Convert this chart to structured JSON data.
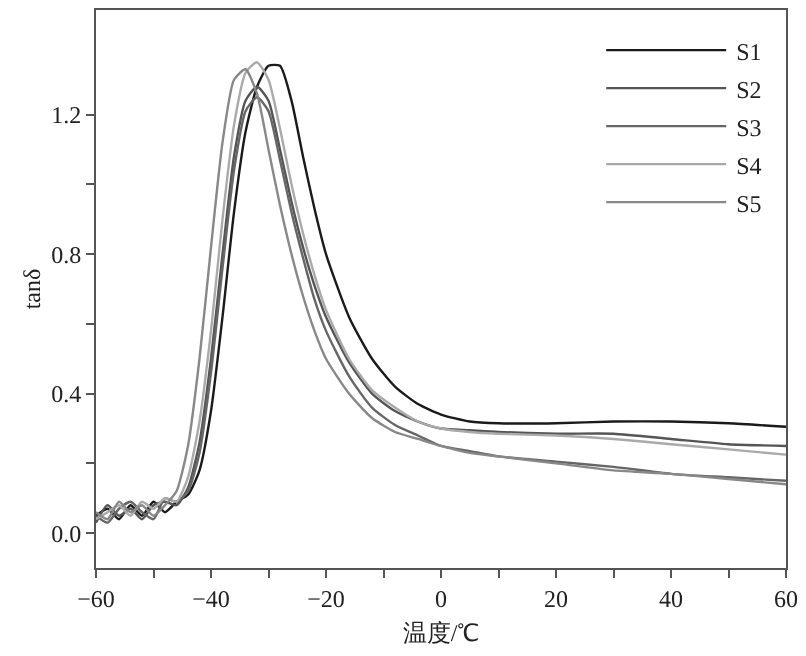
{
  "chart_data": {
    "type": "line",
    "xlabel": "温度/℃",
    "ylabel": "tanδ",
    "x": [
      -60,
      -58,
      -56,
      -54,
      -52,
      -50,
      -48,
      -46,
      -44,
      -42,
      -40,
      -38,
      -36,
      -34,
      -32,
      -30,
      -28,
      -26,
      -24,
      -22,
      -20,
      -16,
      -12,
      -8,
      -4,
      0,
      5,
      10,
      20,
      30,
      40,
      50,
      60
    ],
    "series": [
      {
        "name": "S1",
        "color": "#1a1a1a",
        "values": [
          0.05,
          0.07,
          0.04,
          0.08,
          0.05,
          0.09,
          0.06,
          0.09,
          0.11,
          0.18,
          0.35,
          0.62,
          0.92,
          1.15,
          1.28,
          1.34,
          1.34,
          1.24,
          1.08,
          0.93,
          0.8,
          0.62,
          0.5,
          0.42,
          0.37,
          0.34,
          0.32,
          0.315,
          0.315,
          0.32,
          0.32,
          0.315,
          0.305
        ]
      },
      {
        "name": "S2",
        "color": "#555555",
        "values": [
          0.03,
          0.08,
          0.05,
          0.07,
          0.04,
          0.08,
          0.09,
          0.08,
          0.13,
          0.26,
          0.5,
          0.8,
          1.08,
          1.24,
          1.28,
          1.24,
          1.1,
          0.95,
          0.82,
          0.71,
          0.62,
          0.49,
          0.4,
          0.35,
          0.32,
          0.3,
          0.295,
          0.29,
          0.285,
          0.285,
          0.27,
          0.255,
          0.25
        ]
      },
      {
        "name": "S3",
        "color": "#666666",
        "values": [
          0.05,
          0.03,
          0.07,
          0.09,
          0.06,
          0.04,
          0.1,
          0.09,
          0.12,
          0.23,
          0.46,
          0.76,
          1.04,
          1.21,
          1.25,
          1.21,
          1.07,
          0.92,
          0.79,
          0.67,
          0.58,
          0.45,
          0.36,
          0.31,
          0.28,
          0.25,
          0.235,
          0.22,
          0.205,
          0.19,
          0.17,
          0.16,
          0.15
        ]
      },
      {
        "name": "S4",
        "color": "#aaaaaa",
        "values": [
          0.04,
          0.06,
          0.08,
          0.05,
          0.09,
          0.07,
          0.1,
          0.09,
          0.16,
          0.32,
          0.58,
          0.9,
          1.17,
          1.32,
          1.35,
          1.3,
          1.16,
          1.0,
          0.86,
          0.74,
          0.64,
          0.5,
          0.41,
          0.36,
          0.32,
          0.3,
          0.29,
          0.285,
          0.28,
          0.27,
          0.255,
          0.24,
          0.225
        ]
      },
      {
        "name": "S5",
        "color": "#888888",
        "values": [
          0.06,
          0.04,
          0.09,
          0.06,
          0.08,
          0.05,
          0.08,
          0.12,
          0.25,
          0.5,
          0.82,
          1.12,
          1.3,
          1.33,
          1.26,
          1.1,
          0.94,
          0.8,
          0.68,
          0.58,
          0.5,
          0.4,
          0.33,
          0.29,
          0.27,
          0.25,
          0.23,
          0.22,
          0.2,
          0.18,
          0.17,
          0.155,
          0.14
        ]
      }
    ],
    "xlim": [
      -60,
      60
    ],
    "xticks": [
      -60,
      {
        "value": -50,
        "label": null
      },
      -40,
      {
        "value": -30,
        "label": null
      },
      -20,
      {
        "value": -10,
        "label": null
      },
      0,
      {
        "value": 10,
        "label": null
      },
      20,
      {
        "value": 30,
        "label": null
      },
      40,
      {
        "value": 50,
        "label": null
      },
      60
    ],
    "ylim": [
      -0.1,
      1.5
    ],
    "yticks": [
      {
        "value": 0,
        "label": "0.0"
      },
      {
        "value": 0.2,
        "label": null
      },
      0.4,
      {
        "value": 0.6,
        "label": null
      },
      0.8,
      {
        "value": 1.0,
        "label": null
      },
      1.2
    ],
    "legend": "top right",
    "marker": "none",
    "line_style": "solid"
  }
}
